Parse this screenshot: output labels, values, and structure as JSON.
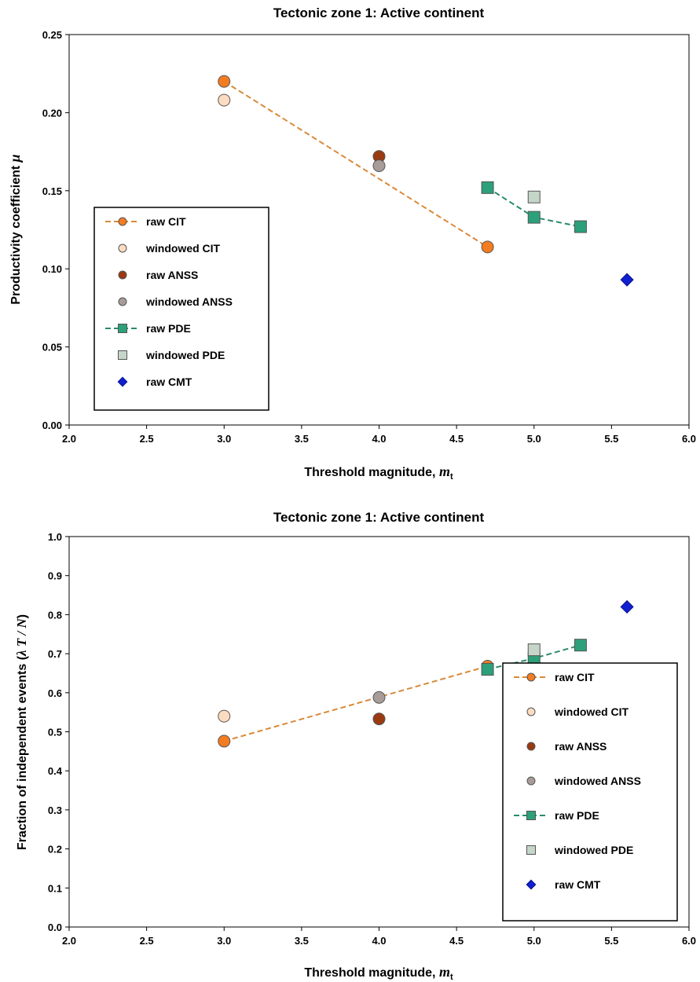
{
  "chart_data": [
    {
      "type": "scatter",
      "title": "Tectonic zone 1: Active continent",
      "xlabel": "Threshold magnitude, ",
      "xlabel_symbol": "m",
      "xlabel_sub": "t",
      "ylabel": "Productivity coefficient  ",
      "ylabel_symbol": "μ",
      "xlim": [
        2.0,
        6.0
      ],
      "ylim": [
        0.0,
        0.25
      ],
      "xticks": [
        "2.0",
        "2.5",
        "3.0",
        "3.5",
        "4.0",
        "4.5",
        "5.0",
        "5.5",
        "6.0"
      ],
      "yticks": [
        "0.00",
        "0.05",
        "0.10",
        "0.15",
        "0.20",
        "0.25"
      ],
      "grid": false,
      "legend_position": "left",
      "series": [
        {
          "name": "raw CIT",
          "marker": "circle",
          "color": "#f47c20",
          "line": true,
          "line_color": "#d98a3a",
          "x": [
            3.0,
            4.7
          ],
          "y": [
            0.22,
            0.114
          ]
        },
        {
          "name": "windowed CIT",
          "marker": "circle",
          "color": "#fbdcc1",
          "line": false,
          "x": [
            3.0
          ],
          "y": [
            0.208
          ]
        },
        {
          "name": "raw ANSS",
          "marker": "circle",
          "color": "#9a3a10",
          "line": false,
          "x": [
            4.0
          ],
          "y": [
            0.172
          ]
        },
        {
          "name": "windowed ANSS",
          "marker": "circle",
          "color": "#a89c98",
          "line": false,
          "x": [
            4.0
          ],
          "y": [
            0.166
          ]
        },
        {
          "name": "raw PDE",
          "marker": "square",
          "color": "#2ca07a",
          "line": true,
          "line_color": "#2a8a6e",
          "x": [
            4.7,
            5.0,
            5.3
          ],
          "y": [
            0.152,
            0.133,
            0.127
          ]
        },
        {
          "name": "windowed PDE",
          "marker": "square",
          "color": "#c5d6c9",
          "line": false,
          "x": [
            5.0
          ],
          "y": [
            0.146
          ]
        },
        {
          "name": "raw CMT",
          "marker": "diamond",
          "color": "#1020d0",
          "line": false,
          "x": [
            5.6
          ],
          "y": [
            0.093
          ]
        }
      ]
    },
    {
      "type": "scatter",
      "title": "Tectonic zone 1: Active continent",
      "xlabel": "Threshold magnitude, ",
      "xlabel_symbol": "m",
      "xlabel_sub": "t",
      "ylabel": "Fraction of independent events (",
      "ylabel_symbol": "λ T / N",
      "ylabel_end": ")",
      "xlim": [
        2.0,
        6.0
      ],
      "ylim": [
        0.0,
        1.0
      ],
      "xticks": [
        "2.0",
        "2.5",
        "3.0",
        "3.5",
        "4.0",
        "4.5",
        "5.0",
        "5.5",
        "6.0"
      ],
      "yticks": [
        "0.0",
        "0.1",
        "0.2",
        "0.3",
        "0.4",
        "0.5",
        "0.6",
        "0.7",
        "0.8",
        "0.9",
        "1.0"
      ],
      "grid": false,
      "legend_position": "bottom-right",
      "series": [
        {
          "name": "raw CIT",
          "marker": "circle",
          "color": "#f47c20",
          "line": true,
          "line_color": "#d98a3a",
          "x": [
            3.0,
            4.7
          ],
          "y": [
            0.476,
            0.668
          ]
        },
        {
          "name": "windowed CIT",
          "marker": "circle",
          "color": "#fbdcc1",
          "line": false,
          "x": [
            3.0
          ],
          "y": [
            0.54
          ]
        },
        {
          "name": "raw ANSS",
          "marker": "circle",
          "color": "#9a3a10",
          "line": false,
          "x": [
            4.0
          ],
          "y": [
            0.533
          ]
        },
        {
          "name": "windowed ANSS",
          "marker": "circle",
          "color": "#a89c98",
          "line": false,
          "x": [
            4.0
          ],
          "y": [
            0.588
          ]
        },
        {
          "name": "raw PDE",
          "marker": "square",
          "color": "#2ca07a",
          "line": true,
          "line_color": "#2a8a6e",
          "x": [
            4.7,
            5.0,
            5.3
          ],
          "y": [
            0.66,
            0.688,
            0.722
          ]
        },
        {
          "name": "windowed PDE",
          "marker": "square",
          "color": "#c5d6c9",
          "line": false,
          "x": [
            5.0
          ],
          "y": [
            0.71
          ]
        },
        {
          "name": "raw CMT",
          "marker": "diamond",
          "color": "#1020d0",
          "line": false,
          "x": [
            5.6
          ],
          "y": [
            0.82
          ]
        }
      ]
    }
  ]
}
